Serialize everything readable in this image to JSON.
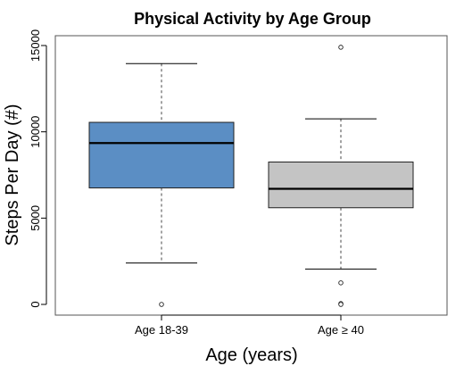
{
  "chart_data": {
    "type": "box",
    "title": "Physical Activity by Age Group",
    "xlabel": "Age (years)",
    "ylabel": "Steps Per Day (#)",
    "ylim": [
      0,
      15000
    ],
    "yticks": [
      0,
      5000,
      10000,
      15000
    ],
    "ytick_labels": [
      "0",
      "5000",
      "10000",
      "15000"
    ],
    "grid": false,
    "groups": [
      {
        "label": "Age 18-39",
        "color": "#5b8ec4",
        "whisker_low": 2400,
        "q1": 6750,
        "median": 9350,
        "q3": 10550,
        "whisker_high": 13950,
        "outliers": [
          0
        ]
      },
      {
        "label": "Age ≥ 40",
        "color": "#c4c4c4",
        "whisker_low": 2050,
        "q1": 5600,
        "median": 6700,
        "q3": 8250,
        "whisker_high": 10750,
        "outliers": [
          14900,
          1250,
          50,
          0
        ]
      }
    ]
  }
}
